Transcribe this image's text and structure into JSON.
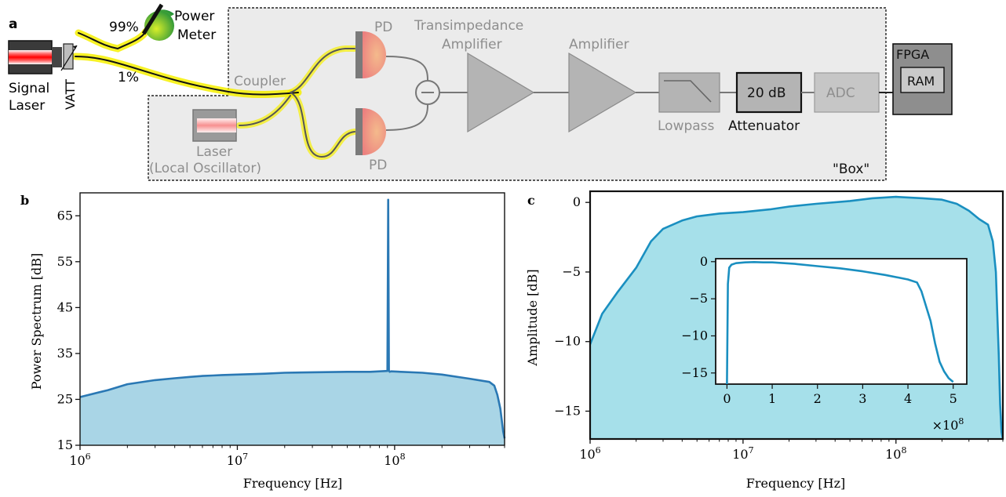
{
  "panel_a": {
    "label": "a",
    "signal_laser": [
      "Signal",
      "Laser"
    ],
    "vatt": "VATT",
    "split_99": "99%",
    "split_1": "1%",
    "power_meter": [
      "Power",
      "Meter"
    ],
    "coupler": "Coupler",
    "pd_top": "PD",
    "pd_bottom": "PD",
    "lo_laser": [
      "Laser",
      "(Local Oscillator)"
    ],
    "tia": [
      "Transimpedance",
      "Amplifier"
    ],
    "amplifier": "Amplifier",
    "lowpass": "Lowpass",
    "attenuator_value": "20 dB",
    "attenuator": "Attenuator",
    "adc": "ADC",
    "fpga": "FPGA",
    "ram": "RAM",
    "box": "\"Box\"",
    "colors": {
      "fiber": "#f6f000",
      "box_fill": "#ebebeb",
      "grey": "#9a9a9a",
      "pd": "#f08c78"
    }
  },
  "chart_data": [
    {
      "panel": "b",
      "type": "line",
      "xlabel": "Frequency [Hz]",
      "ylabel": "Power Spectrum [dB]",
      "xscale": "log",
      "xlim": [
        1000000,
        500000000
      ],
      "ylim": [
        15,
        70
      ],
      "xticks": [
        "10^6",
        "10^7",
        "10^8"
      ],
      "yticks": [
        "15",
        "25",
        "35",
        "45",
        "55",
        "65"
      ],
      "fill": true,
      "color": "#2a78b4",
      "fill_color": "#a9d5e6",
      "series": [
        {
          "x": [
            1000000,
            1500000,
            2000000,
            3000000,
            4000000,
            5000000,
            6000000,
            7000000,
            8000000,
            10000000,
            15000000,
            20000000,
            30000000,
            50000000,
            70000000,
            90000000,
            91000000,
            92000000,
            93000000,
            95000000,
            110000000,
            150000000,
            200000000,
            300000000,
            400000000,
            430000000,
            450000000,
            470000000,
            480000000,
            490000000,
            500000000
          ],
          "y": [
            25.5,
            27.0,
            28.3,
            29.2,
            29.6,
            29.9,
            30.1,
            30.2,
            30.3,
            30.4,
            30.6,
            30.8,
            30.9,
            31.0,
            31.0,
            31.2,
            68.5,
            31.3,
            31.0,
            31.1,
            31.0,
            30.8,
            30.4,
            29.5,
            28.8,
            28.0,
            26.0,
            23.0,
            20.5,
            18.0,
            16.5
          ]
        }
      ]
    },
    {
      "panel": "c",
      "type": "area",
      "xlabel": "Frequency [Hz]",
      "ylabel": "Amplitude [dB]",
      "xscale": "log",
      "xlim": [
        1000000,
        500000000
      ],
      "ylim": [
        -17,
        0.8
      ],
      "xticks": [
        "10^6",
        "10^7",
        "10^8"
      ],
      "yticks": [
        "0",
        "−5",
        "−10",
        "−15"
      ],
      "color": "#1a8fc0",
      "fill_color": "#a6e0ea",
      "series": [
        {
          "x": [
            1000000,
            1200000,
            1500000,
            2000000,
            2500000,
            3000000,
            4000000,
            5000000,
            7000000,
            10000000,
            15000000,
            20000000,
            30000000,
            50000000,
            70000000,
            100000000,
            150000000,
            200000000,
            250000000,
            300000000,
            350000000,
            400000000,
            430000000,
            450000000,
            460000000,
            470000000,
            480000000,
            490000000,
            500000000
          ],
          "y": [
            -10.2,
            -8.0,
            -6.5,
            -4.7,
            -2.8,
            -1.9,
            -1.3,
            -1.0,
            -0.8,
            -0.7,
            -0.5,
            -0.3,
            -0.1,
            0.1,
            0.3,
            0.4,
            0.3,
            0.2,
            -0.1,
            -0.6,
            -1.2,
            -1.6,
            -2.8,
            -5.0,
            -8.0,
            -11.0,
            -14.5,
            -16.5,
            -17.5
          ]
        }
      ],
      "inset": {
        "type": "line",
        "xscale": "linear",
        "xlim": [
          -0.25,
          5.3
        ],
        "ylim": [
          -16.5,
          0.4
        ],
        "xticks": [
          "0",
          "1",
          "2",
          "3",
          "4",
          "5"
        ],
        "yticks": [
          "0",
          "−5",
          "−10",
          "−15"
        ],
        "xmultiplier": "×10",
        "xmultiplier_exp": "8",
        "x": [
          0.0,
          0.02,
          0.05,
          0.1,
          0.2,
          0.4,
          0.6,
          0.8,
          1.0,
          1.5,
          2.0,
          2.5,
          3.0,
          3.5,
          4.0,
          4.2,
          4.3,
          4.4,
          4.5,
          4.6,
          4.7,
          4.8,
          4.9,
          5.0
        ],
        "y": [
          -16.5,
          -3.0,
          -0.8,
          -0.4,
          -0.2,
          -0.1,
          -0.05,
          -0.1,
          -0.1,
          -0.3,
          -0.6,
          -0.9,
          -1.3,
          -1.8,
          -2.4,
          -2.8,
          -4.0,
          -6.0,
          -8.0,
          -11.0,
          -13.5,
          -14.8,
          -15.7,
          -16.2
        ]
      }
    }
  ]
}
